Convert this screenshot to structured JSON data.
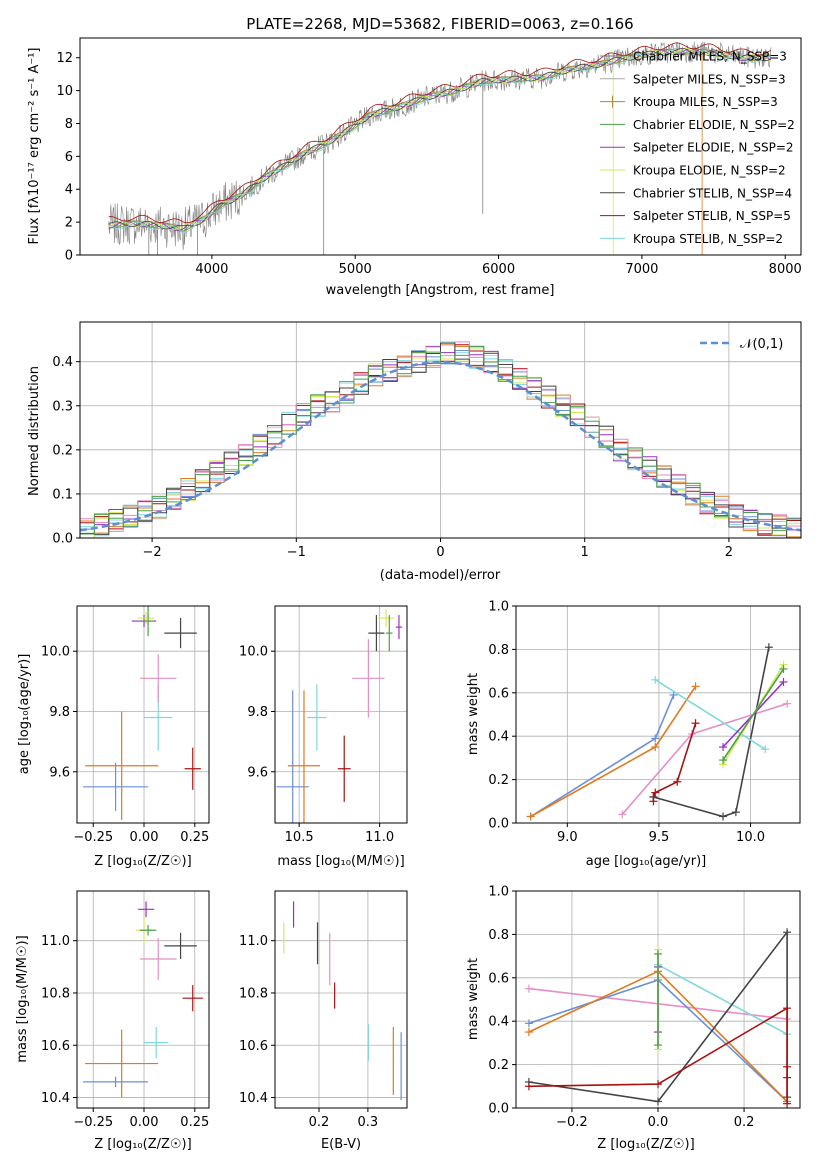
{
  "chart_data": [
    {
      "type": "line",
      "title": "PLATE=2268, MJD=53682, FIBERID=0063, z=0.166",
      "xlabel": "wavelength [Angstrom, rest frame]",
      "ylabel": "Flux [fλ10⁻¹⁷ erg cm⁻² s⁻¹ A⁻¹]",
      "xlim": [
        3080,
        8110
      ],
      "ylim": [
        0,
        13.2
      ],
      "xticks": [
        "4000",
        "5000",
        "6000",
        "7000",
        "8000"
      ],
      "yticks": [
        "0",
        "2",
        "4",
        "6",
        "8",
        "10",
        "12"
      ],
      "grid": false,
      "legend": "top-right",
      "continuum": {
        "x": [
          3280,
          3400,
          3500,
          3650,
          3800,
          3950,
          4050,
          4200,
          4350,
          4500,
          4650,
          4800,
          4950,
          5100,
          5300,
          5500,
          5700,
          5900,
          6100,
          6300,
          6500,
          6700,
          6900,
          7100,
          7300,
          7500,
          7700,
          7900
        ],
        "y": [
          1.8,
          1.9,
          1.9,
          1.8,
          1.6,
          2.2,
          3.0,
          3.6,
          4.6,
          5.4,
          6.2,
          6.8,
          7.6,
          8.5,
          9.0,
          9.6,
          10.0,
          10.6,
          10.7,
          10.8,
          11.3,
          11.6,
          12.0,
          12.3,
          12.4,
          12.3,
          12.0,
          12.0
        ]
      },
      "series": [
        {
          "name": "Chabrier MILES, N_SSP=3",
          "color": "#808080"
        },
        {
          "name": "Salpeter MILES, N_SSP=3",
          "color": "#a8a8a8"
        },
        {
          "name": "Kroupa MILES, N_SSP=3",
          "color": "#b08a2a"
        },
        {
          "name": "Chabrier ELODIE, N_SSP=2",
          "color": "#4aa04a"
        },
        {
          "name": "Salpeter ELODIE, N_SSP=2",
          "color": "#9b30c0"
        },
        {
          "name": "Kroupa ELODIE, N_SSP=2",
          "color": "#d6e85a"
        },
        {
          "name": "Chabrier STELIB, N_SSP=4",
          "color": "#444444"
        },
        {
          "name": "Salpeter STELIB, N_SSP=5",
          "color": "#aa1111"
        },
        {
          "name": "Kroupa STELIB, N_SSP=2",
          "color": "#7fd8dd"
        }
      ]
    },
    {
      "type": "bar",
      "title": "",
      "xlabel": "(data-model)/error",
      "ylabel": "Normed distribution",
      "xlim": [
        -2.5,
        2.5
      ],
      "ylim": [
        0,
        0.49
      ],
      "xticks": [
        "−2",
        "−1",
        "0",
        "1",
        "2"
      ],
      "yticks": [
        "0.0",
        "0.1",
        "0.2",
        "0.3",
        "0.4"
      ],
      "grid": true,
      "legend": "top-right",
      "legend_label": "𝒩(0,1)",
      "bins": [
        -2.5,
        -2.4,
        -2.3,
        -2.2,
        -2.1,
        -2.0,
        -1.9,
        -1.8,
        -1.7,
        -1.6,
        -1.5,
        -1.4,
        -1.3,
        -1.2,
        -1.1,
        -1.0,
        -0.9,
        -0.8,
        -0.7,
        -0.6,
        -0.5,
        -0.4,
        -0.3,
        -0.2,
        -0.1,
        0.0,
        0.1,
        0.2,
        0.3,
        0.4,
        0.5,
        0.6,
        0.7,
        0.8,
        0.9,
        1.0,
        1.1,
        1.2,
        1.3,
        1.4,
        1.5,
        1.6,
        1.7,
        1.8,
        1.9,
        2.0,
        2.1,
        2.2,
        2.3,
        2.4
      ],
      "hist_base": [
        0.02,
        0.03,
        0.04,
        0.05,
        0.06,
        0.07,
        0.09,
        0.11,
        0.13,
        0.15,
        0.17,
        0.19,
        0.21,
        0.23,
        0.26,
        0.28,
        0.3,
        0.31,
        0.33,
        0.35,
        0.37,
        0.38,
        0.39,
        0.4,
        0.41,
        0.42,
        0.42,
        0.41,
        0.4,
        0.38,
        0.36,
        0.34,
        0.32,
        0.3,
        0.28,
        0.25,
        0.23,
        0.2,
        0.18,
        0.16,
        0.14,
        0.12,
        0.1,
        0.08,
        0.07,
        0.05,
        0.04,
        0.03,
        0.03,
        0.02
      ],
      "series": [
        {
          "color": "#6a8fd8"
        },
        {
          "color": "#e07a1f"
        },
        {
          "color": "#9b30c0"
        },
        {
          "color": "#aa1111"
        },
        {
          "color": "#7fd8dd"
        },
        {
          "color": "#d6e85a"
        },
        {
          "color": "#e58fc8"
        },
        {
          "color": "#444444"
        },
        {
          "color": "#4aa04a"
        }
      ],
      "gaussian_color": "#5b8fd6"
    },
    {
      "type": "scatter",
      "xlabel": "Z [log₁₀(Z/Z☉)]",
      "ylabel": "age  [log₁₀(age/yr)]",
      "xlim": [
        -0.33,
        0.32
      ],
      "ylim": [
        9.43,
        10.15
      ],
      "xticks": [
        "−0.25",
        "0.00",
        "0.25"
      ],
      "yticks": [
        "9.6",
        "9.8",
        "10.0"
      ],
      "grid": true,
      "points": [
        {
          "x": -0.14,
          "y": 9.55,
          "xerr": 0.16,
          "yerr": 0.08,
          "color": "#6a8fd8"
        },
        {
          "x": -0.11,
          "y": 9.62,
          "xerr": 0.18,
          "yerr": 0.18,
          "color": "#e07a1f"
        },
        {
          "x": 0.0,
          "y": 10.1,
          "xerr": 0.06,
          "yerr": 0.02,
          "color": "#9b30c0"
        },
        {
          "x": 0.24,
          "y": 9.61,
          "xerr": 0.04,
          "yerr": 0.07,
          "color": "#aa1111"
        },
        {
          "x": 0.07,
          "y": 9.78,
          "xerr": 0.07,
          "yerr": 0.11,
          "color": "#7fd8dd"
        },
        {
          "x": 0.01,
          "y": 10.11,
          "xerr": 0.04,
          "yerr": 0.02,
          "color": "#d6e85a"
        },
        {
          "x": 0.07,
          "y": 9.91,
          "xerr": 0.09,
          "yerr": 0.08,
          "color": "#e58fc8"
        },
        {
          "x": 0.18,
          "y": 10.06,
          "xerr": 0.08,
          "yerr": 0.05,
          "color": "#444444"
        },
        {
          "x": 0.02,
          "y": 10.1,
          "xerr": 0.03,
          "yerr": 0.05,
          "color": "#4aa04a"
        }
      ]
    },
    {
      "type": "scatter",
      "xlabel": "mass [log₁₀(M/M☉)]",
      "ylabel": "",
      "xlim": [
        10.35,
        11.17
      ],
      "ylim": [
        9.43,
        10.15
      ],
      "xticks": [
        "10.5",
        "11.0"
      ],
      "yticks": [
        "9.6",
        "9.8",
        "10.0"
      ],
      "grid": true,
      "points": [
        {
          "x": 10.46,
          "y": 9.55,
          "xerr": 0.1,
          "yerr": 0.32,
          "color": "#6a8fd8"
        },
        {
          "x": 10.53,
          "y": 9.62,
          "xerr": 0.1,
          "yerr": 0.25,
          "color": "#e07a1f"
        },
        {
          "x": 11.12,
          "y": 10.08,
          "xerr": 0.02,
          "yerr": 0.04,
          "color": "#9b30c0"
        },
        {
          "x": 10.78,
          "y": 9.61,
          "xerr": 0.04,
          "yerr": 0.11,
          "color": "#aa1111"
        },
        {
          "x": 10.61,
          "y": 9.78,
          "xerr": 0.06,
          "yerr": 0.11,
          "color": "#7fd8dd"
        },
        {
          "x": 11.04,
          "y": 10.11,
          "xerr": 0.05,
          "yerr": 0.03,
          "color": "#d6e85a"
        },
        {
          "x": 10.93,
          "y": 9.91,
          "xerr": 0.1,
          "yerr": 0.13,
          "color": "#e58fc8"
        },
        {
          "x": 10.98,
          "y": 10.06,
          "xerr": 0.05,
          "yerr": 0.06,
          "color": "#444444"
        },
        {
          "x": 11.06,
          "y": 10.06,
          "xerr": 0.02,
          "yerr": 0.06,
          "color": "#4aa04a"
        }
      ]
    },
    {
      "type": "line",
      "xlabel": "age  [log₁₀(age/yr)]",
      "ylabel": "mass weight",
      "xlim": [
        8.72,
        10.27
      ],
      "ylim": [
        0,
        1.0
      ],
      "xticks": [
        "9.0",
        "9.5",
        "10.0"
      ],
      "yticks": [
        "0.0",
        "0.2",
        "0.4",
        "0.6",
        "0.8",
        "1.0"
      ],
      "grid": true,
      "series": [
        {
          "color": "#6a8fd8",
          "x": [
            8.8,
            9.48,
            9.58
          ],
          "y": [
            0.03,
            0.39,
            0.59
          ]
        },
        {
          "color": "#e07a1f",
          "x": [
            8.8,
            9.48,
            9.7
          ],
          "y": [
            0.03,
            0.35,
            0.63
          ]
        },
        {
          "color": "#e58fc8",
          "x": [
            9.3,
            9.68,
            10.2
          ],
          "y": [
            0.04,
            0.41,
            0.55
          ]
        },
        {
          "color": "#aa1111",
          "x": [
            9.47,
            9.47,
            9.48,
            9.6,
            9.7
          ],
          "y": [
            0.1,
            0.12,
            0.14,
            0.19,
            0.46
          ]
        },
        {
          "color": "#444444",
          "x": [
            9.47,
            9.85,
            9.92,
            10.1
          ],
          "y": [
            0.12,
            0.03,
            0.05,
            0.81
          ]
        },
        {
          "color": "#7fd8dd",
          "x": [
            9.48,
            10.08
          ],
          "y": [
            0.66,
            0.34
          ]
        },
        {
          "color": "#9b30c0",
          "x": [
            9.85,
            10.18
          ],
          "y": [
            0.35,
            0.65
          ]
        },
        {
          "color": "#d6e85a",
          "x": [
            9.85,
            10.18
          ],
          "y": [
            0.27,
            0.73
          ]
        },
        {
          "color": "#4aa04a",
          "x": [
            9.85,
            10.18
          ],
          "y": [
            0.29,
            0.71
          ]
        }
      ]
    },
    {
      "type": "scatter",
      "xlabel": "Z [log₁₀(Z/Z☉)]",
      "ylabel": "mass [log₁₀(M/M☉)]",
      "xlim": [
        -0.33,
        0.32
      ],
      "ylim": [
        10.36,
        11.19
      ],
      "xticks": [
        "−0.25",
        "0.00",
        "0.25"
      ],
      "yticks": [
        "10.4",
        "10.6",
        "10.8",
        "11.0"
      ],
      "grid": true,
      "points": [
        {
          "x": -0.14,
          "y": 10.46,
          "xerr": 0.16,
          "yerr": 0.02,
          "color": "#6a8fd8"
        },
        {
          "x": -0.11,
          "y": 10.53,
          "xerr": 0.18,
          "yerr": 0.13,
          "color": "#e07a1f"
        },
        {
          "x": 0.01,
          "y": 11.12,
          "xerr": 0.04,
          "yerr": 0.03,
          "color": "#9b30c0"
        },
        {
          "x": 0.24,
          "y": 10.78,
          "xerr": 0.05,
          "yerr": 0.05,
          "color": "#aa1111"
        },
        {
          "x": 0.06,
          "y": 10.61,
          "xerr": 0.06,
          "yerr": 0.06,
          "color": "#7fd8dd"
        },
        {
          "x": 0.0,
          "y": 11.04,
          "xerr": 0.04,
          "yerr": 0.05,
          "color": "#d6e85a"
        },
        {
          "x": 0.07,
          "y": 10.93,
          "xerr": 0.09,
          "yerr": 0.08,
          "color": "#e58fc8"
        },
        {
          "x": 0.18,
          "y": 10.98,
          "xerr": 0.08,
          "yerr": 0.05,
          "color": "#444444"
        },
        {
          "x": 0.02,
          "y": 11.04,
          "xerr": 0.04,
          "yerr": 0.02,
          "color": "#4aa04a"
        }
      ]
    },
    {
      "type": "scatter",
      "xlabel": "E(B-V)",
      "ylabel": "",
      "xlim": [
        0.11,
        0.38
      ],
      "ylim": [
        10.36,
        11.19
      ],
      "xticks": [
        "0.2",
        "0.3"
      ],
      "yticks": [
        "10.4",
        "10.6",
        "10.8",
        "11.0"
      ],
      "grid": true,
      "points": [
        {
          "x": 0.368,
          "y": 10.52,
          "xerr": 0,
          "yerr": 0.13,
          "color": "#6a8fd8"
        },
        {
          "x": 0.352,
          "y": 10.54,
          "xerr": 0,
          "yerr": 0.13,
          "color": "#e07a1f"
        },
        {
          "x": 0.148,
          "y": 11.1,
          "xerr": 0,
          "yerr": 0.05,
          "color": "#9b30c0"
        },
        {
          "x": 0.232,
          "y": 10.79,
          "xerr": 0,
          "yerr": 0.05,
          "color": "#aa1111"
        },
        {
          "x": 0.301,
          "y": 10.61,
          "xerr": 0,
          "yerr": 0.07,
          "color": "#7fd8dd"
        },
        {
          "x": 0.128,
          "y": 11.01,
          "xerr": 0,
          "yerr": 0.06,
          "color": "#d6e85a"
        },
        {
          "x": 0.222,
          "y": 10.93,
          "xerr": 0,
          "yerr": 0.1,
          "color": "#e58fc8"
        },
        {
          "x": 0.197,
          "y": 10.99,
          "xerr": 0,
          "yerr": 0.08,
          "color": "#444444"
        }
      ]
    },
    {
      "type": "line",
      "xlabel": "Z [log₁₀(Z/Z☉)]",
      "ylabel": "mass weight",
      "xlim": [
        -0.33,
        0.33
      ],
      "ylim": [
        0,
        1.0
      ],
      "xticks": [
        "−0.2",
        "0.0",
        "0.2"
      ],
      "yticks": [
        "0.0",
        "0.2",
        "0.4",
        "0.6",
        "0.8",
        "1.0"
      ],
      "grid": true,
      "series": [
        {
          "color": "#e58fc8",
          "x": [
            -0.3,
            0.3
          ],
          "y": [
            0.55,
            0.41
          ]
        },
        {
          "color": "#6a8fd8",
          "x": [
            -0.3,
            0.0,
            0.3
          ],
          "y": [
            0.39,
            0.59,
            0.03
          ]
        },
        {
          "color": "#e07a1f",
          "x": [
            -0.3,
            0.0,
            0.3
          ],
          "y": [
            0.35,
            0.63,
            0.03
          ]
        },
        {
          "color": "#7fd8dd",
          "x": [
            0.0,
            0.3
          ],
          "y": [
            0.66,
            0.34
          ]
        },
        {
          "color": "#444444",
          "x": [
            -0.3,
            0.0,
            0.3,
            0.3
          ],
          "y": [
            0.12,
            0.03,
            0.81,
            0.05
          ]
        },
        {
          "color": "#aa1111",
          "x": [
            -0.3,
            0.0,
            0.3,
            0.3,
            0.3,
            0.3
          ],
          "y": [
            0.1,
            0.11,
            0.46,
            0.19,
            0.14,
            0.02
          ]
        },
        {
          "color": "#9b30c0",
          "x": [
            0.0,
            0.0
          ],
          "y": [
            0.35,
            0.65
          ]
        },
        {
          "color": "#d6e85a",
          "x": [
            0.0,
            0.0
          ],
          "y": [
            0.27,
            0.73
          ]
        },
        {
          "color": "#4aa04a",
          "x": [
            0.0,
            0.0
          ],
          "y": [
            0.29,
            0.71
          ]
        }
      ]
    }
  ]
}
